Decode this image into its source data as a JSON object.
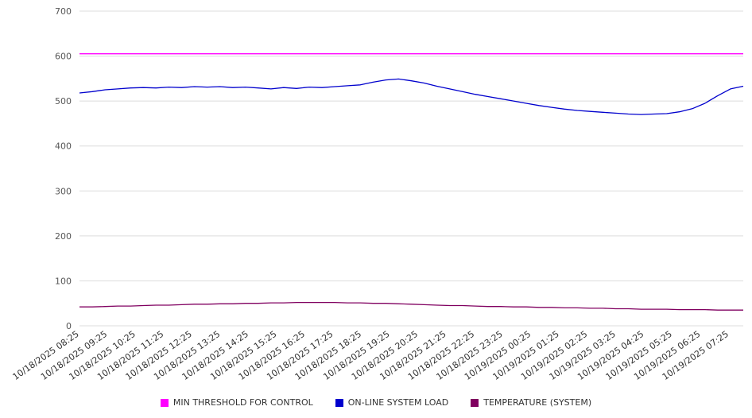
{
  "chart_data": {
    "type": "line",
    "title": "",
    "xlabel": "",
    "ylabel": "",
    "ylim": [
      0,
      700
    ],
    "yticks": [
      0,
      100,
      200,
      300,
      400,
      500,
      600,
      700
    ],
    "grid": "horizontal",
    "grid_color": "#dcdcdc",
    "background": "#ffffff",
    "legend_position": "bottom",
    "categories": [
      "10/18/2025 08:25",
      "10/18/2025 09:25",
      "10/18/2025 10:25",
      "10/18/2025 11:25",
      "10/18/2025 12:25",
      "10/18/2025 13:25",
      "10/18/2025 14:25",
      "10/18/2025 15:25",
      "10/18/2025 16:25",
      "10/18/2025 17:25",
      "10/18/2025 18:25",
      "10/18/2025 19:25",
      "10/18/2025 20:25",
      "10/18/2025 21:25",
      "10/18/2025 22:25",
      "10/18/2025 23:25",
      "10/19/2025 00:25",
      "10/19/2025 01:25",
      "10/19/2025 02:25",
      "10/19/2025 03:25",
      "10/19/2025 04:25",
      "10/19/2025 05:25",
      "10/19/2025 06:25",
      "10/19/2025 07:25"
    ],
    "series": [
      {
        "name": "MIN THRESHOLD FOR CONTROL",
        "color": "#ff00ff",
        "values": [
          605,
          605
        ]
      },
      {
        "name": "ON-LINE SYSTEM LOAD",
        "color": "#0000cd",
        "values": [
          518,
          521,
          525,
          527,
          529,
          530,
          529,
          531,
          530,
          532,
          531,
          532,
          530,
          531,
          529,
          527,
          530,
          528,
          531,
          530,
          532,
          534,
          536,
          542,
          547,
          549,
          545,
          540,
          533,
          527,
          521,
          515,
          510,
          505,
          500,
          495,
          490,
          486,
          482,
          479,
          477,
          475,
          473,
          471,
          470,
          471,
          472,
          476,
          483,
          495,
          512,
          527,
          533
        ]
      },
      {
        "name": "TEMPERATURE (SYSTEM)",
        "color": "#800060",
        "values": [
          42,
          42,
          43,
          44,
          44,
          45,
          46,
          46,
          47,
          48,
          48,
          49,
          49,
          50,
          50,
          51,
          51,
          52,
          52,
          52,
          52,
          51,
          51,
          50,
          50,
          49,
          48,
          47,
          46,
          45,
          45,
          44,
          43,
          43,
          42,
          42,
          41,
          41,
          40,
          40,
          39,
          39,
          38,
          38,
          37,
          37,
          37,
          36,
          36,
          36,
          35,
          35,
          35
        ]
      }
    ]
  }
}
